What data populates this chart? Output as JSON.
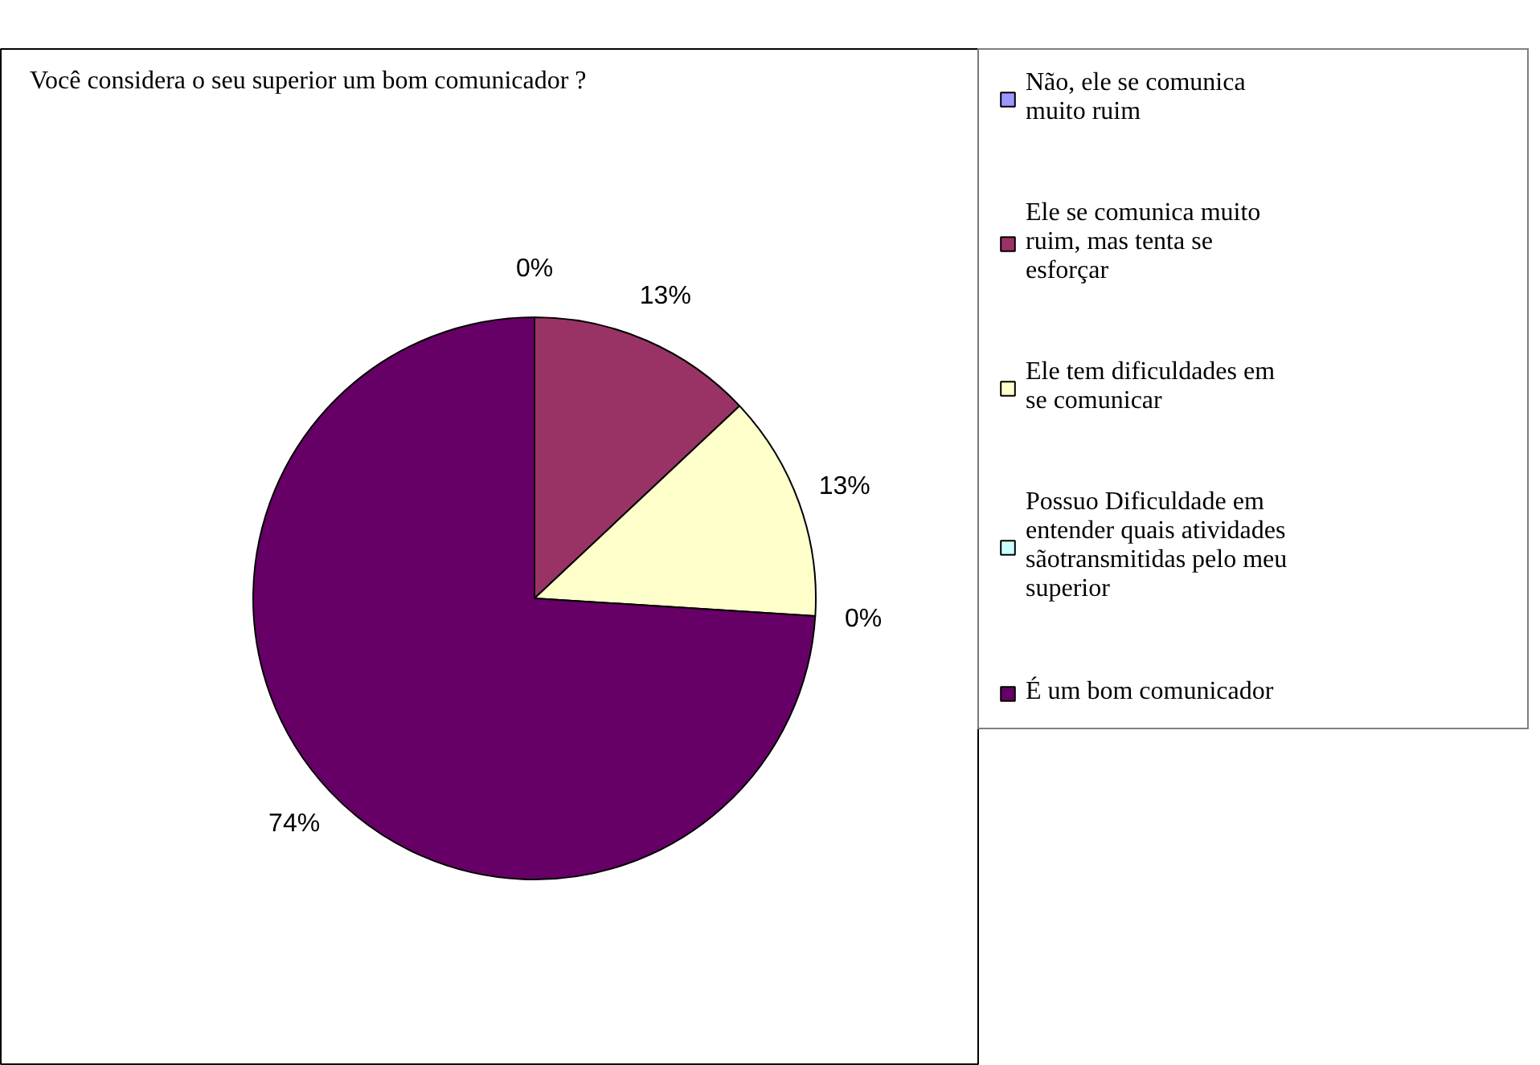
{
  "chart_data": {
    "type": "pie",
    "title": "Você considera o seu superior um bom comunicador ?",
    "categories": [
      "Não, ele se comunica muito ruim",
      "Ele se comunica muito ruim, mas tenta se esforçar",
      "Ele tem dificuldades em se comunicar",
      "Possuo Dificuldade em entender quais atividades sãotransmitidas pelo meu superior",
      "É um bom comunicador"
    ],
    "values": [
      0,
      13,
      13,
      0,
      74
    ],
    "value_labels": [
      "0%",
      "13%",
      "13%",
      "0%",
      "74%"
    ],
    "colors": [
      "#9999ff",
      "#993366",
      "#ffffcc",
      "#ccffff",
      "#660066"
    ],
    "legend": "right"
  }
}
